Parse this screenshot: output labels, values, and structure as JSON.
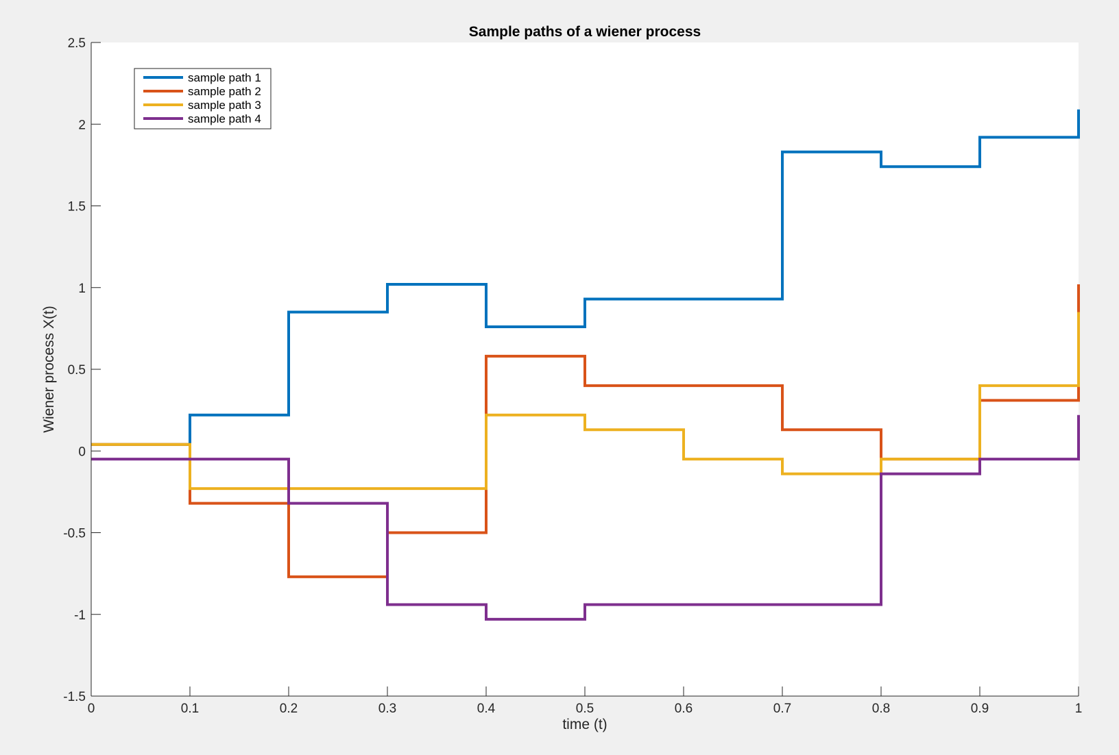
{
  "chart_data": {
    "type": "line",
    "title": "Sample paths of a wiener process",
    "xlabel": "time (t)",
    "ylabel": "Wiener process X(t)",
    "xlim": [
      0,
      1
    ],
    "ylim": [
      -1.5,
      2.5
    ],
    "xticks": [
      0,
      0.1,
      0.2,
      0.3,
      0.4,
      0.5,
      0.6,
      0.7,
      0.8,
      0.9,
      1
    ],
    "xtick_labels": [
      "0",
      "0.1",
      "0.2",
      "0.3",
      "0.4",
      "0.5",
      "0.6",
      "0.7",
      "0.8",
      "0.9",
      "1"
    ],
    "yticks": [
      -1.5,
      -1,
      -0.5,
      0,
      0.5,
      1,
      1.5,
      2,
      2.5
    ],
    "ytick_labels": [
      "-1.5",
      "-1",
      "-0.5",
      "0",
      "0.5",
      "1",
      "1.5",
      "2",
      "2.5"
    ],
    "grid": false,
    "legend_position": "top-left",
    "step_style": "stairs",
    "x": [
      0,
      0.1,
      0.2,
      0.3,
      0.4,
      0.5,
      0.6,
      0.7,
      0.8,
      0.9,
      1
    ],
    "series": [
      {
        "name": "sample path 1",
        "color": "#0072BD",
        "values": [
          0.04,
          0.22,
          0.85,
          1.02,
          0.76,
          0.93,
          0.93,
          1.83,
          1.74,
          1.92,
          2.09
        ]
      },
      {
        "name": "sample path 2",
        "color": "#D95319",
        "values": [
          0.04,
          -0.32,
          -0.77,
          -0.5,
          0.58,
          0.4,
          0.4,
          0.13,
          -0.05,
          0.31,
          1.02
        ]
      },
      {
        "name": "sample path 3",
        "color": "#EDB120",
        "values": [
          0.04,
          -0.23,
          -0.23,
          -0.23,
          0.22,
          0.13,
          -0.05,
          -0.14,
          -0.05,
          0.4,
          0.85
        ]
      },
      {
        "name": "sample path 4",
        "color": "#7E2F8E",
        "values": [
          -0.05,
          -0.05,
          -0.32,
          -0.94,
          -1.03,
          -0.94,
          -0.94,
          -0.94,
          -0.14,
          -0.05,
          0.22
        ]
      }
    ]
  }
}
